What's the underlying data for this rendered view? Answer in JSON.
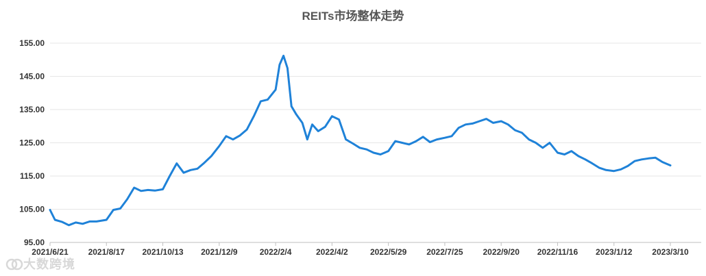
{
  "chart_data": {
    "type": "line",
    "title": "REITs市场整体走势",
    "xlabel": "",
    "ylabel": "",
    "ylim": [
      95,
      155
    ],
    "y_ticks": [
      "95.00",
      "105.00",
      "115.00",
      "125.00",
      "135.00",
      "145.00",
      "155.00"
    ],
    "x_ticks": [
      "2021/6/21",
      "2021/8/17",
      "2021/10/13",
      "2021/12/9",
      "2022/2/4",
      "2022/4/2",
      "2022/5/29",
      "2022/7/25",
      "2022/9/20",
      "2022/11/16",
      "2023/1/12",
      "2023/3/10"
    ],
    "grid": "horizontal",
    "legend": "none",
    "line_color": "#1f82d8",
    "series": [
      {
        "x": [
          "2021/6/21",
          "2021/6/26",
          "2021/7/3",
          "2021/7/10",
          "2021/7/17",
          "2021/7/24",
          "2021/7/31",
          "2021/8/7",
          "2021/8/17",
          "2021/8/24",
          "2021/8/31",
          "2021/9/7",
          "2021/9/14",
          "2021/9/21",
          "2021/9/28",
          "2021/10/5",
          "2021/10/13",
          "2021/10/20",
          "2021/10/27",
          "2021/11/3",
          "2021/11/10",
          "2021/11/17",
          "2021/11/24",
          "2021/12/1",
          "2021/12/9",
          "2021/12/16",
          "2021/12/23",
          "2021/12/30",
          "2022/1/6",
          "2022/1/13",
          "2022/1/20",
          "2022/1/27",
          "2022/2/4",
          "2022/2/8",
          "2022/2/12",
          "2022/2/16",
          "2022/2/20",
          "2022/2/25",
          "2022/3/3",
          "2022/3/8",
          "2022/3/13",
          "2022/3/19",
          "2022/3/26",
          "2022/4/2",
          "2022/4/9",
          "2022/4/16",
          "2022/4/23",
          "2022/4/30",
          "2022/5/7",
          "2022/5/14",
          "2022/5/21",
          "2022/5/29",
          "2022/6/5",
          "2022/6/12",
          "2022/6/19",
          "2022/6/26",
          "2022/7/3",
          "2022/7/10",
          "2022/7/17",
          "2022/7/25",
          "2022/8/1",
          "2022/8/8",
          "2022/8/15",
          "2022/8/22",
          "2022/8/29",
          "2022/9/5",
          "2022/9/12",
          "2022/9/20",
          "2022/9/27",
          "2022/10/4",
          "2022/10/11",
          "2022/10/18",
          "2022/10/25",
          "2022/11/1",
          "2022/11/8",
          "2022/11/16",
          "2022/11/23",
          "2022/11/30",
          "2022/12/7",
          "2022/12/14",
          "2022/12/21",
          "2022/12/28",
          "2023/1/4",
          "2023/1/12",
          "2023/1/19",
          "2023/1/26",
          "2023/2/2",
          "2023/2/9",
          "2023/2/16",
          "2023/2/23",
          "2023/3/2",
          "2023/3/10"
        ],
        "y": [
          104.8,
          101.8,
          101.2,
          100.2,
          101.0,
          100.6,
          101.3,
          101.3,
          101.8,
          104.8,
          105.2,
          108.0,
          111.5,
          110.5,
          110.8,
          110.6,
          111.0,
          115.0,
          118.8,
          116.0,
          116.8,
          117.2,
          119.0,
          121.0,
          124.0,
          127.0,
          126.0,
          127.2,
          129.0,
          133.0,
          137.5,
          138.0,
          141.0,
          148.5,
          151.2,
          147.5,
          136.0,
          133.5,
          131.0,
          126.0,
          130.5,
          128.5,
          129.8,
          133.0,
          132.0,
          126.0,
          124.8,
          123.5,
          123.0,
          122.0,
          121.5,
          122.5,
          125.5,
          125.0,
          124.5,
          125.5,
          126.8,
          125.2,
          126.0,
          126.5,
          127.0,
          129.5,
          130.5,
          130.8,
          131.5,
          132.2,
          131.0,
          131.5,
          130.5,
          128.8,
          128.0,
          126.0,
          125.0,
          123.5,
          125.0,
          122.0,
          121.5,
          122.5,
          121.0,
          120.0,
          118.8,
          117.5,
          116.8,
          116.5,
          117.0,
          118.0,
          119.5,
          120.0,
          120.3,
          120.5,
          119.2,
          118.2
        ]
      }
    ]
  },
  "watermark": {
    "text": "大数跨境"
  }
}
